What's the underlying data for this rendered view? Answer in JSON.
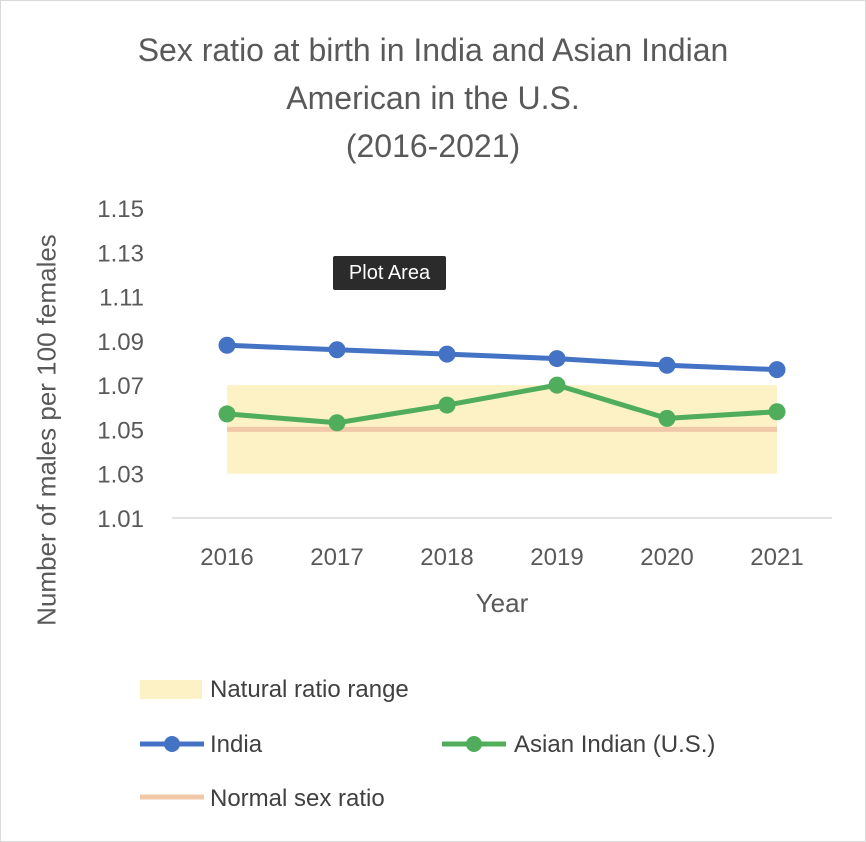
{
  "tooltip": "Plot Area",
  "chart_data": {
    "type": "line",
    "title_lines": [
      "Sex ratio at birth in India and Asian Indian",
      "American in the U.S.",
      "(2016-2021)"
    ],
    "xlabel": "Year",
    "ylabel": "Number of males per 100 females",
    "categories": [
      "2016",
      "2017",
      "2018",
      "2019",
      "2020",
      "2021"
    ],
    "yticks": [
      "1.15",
      "1.13",
      "1.11",
      "1.09",
      "1.07",
      "1.05",
      "1.03",
      "1.01"
    ],
    "ylim": [
      1.01,
      1.15
    ],
    "series": [
      {
        "name": "India",
        "color": "#4472c4",
        "values": [
          1.088,
          1.086,
          1.084,
          1.082,
          1.079,
          1.077
        ]
      },
      {
        "name": "Asian Indian (U.S.)",
        "color": "#4fad5b",
        "values": [
          1.057,
          1.053,
          1.061,
          1.07,
          1.055,
          1.058
        ]
      }
    ],
    "band": {
      "name": "Natural ratio range",
      "color": "#fdf2c6",
      "range": [
        1.03,
        1.07
      ]
    },
    "reference_line": {
      "name": "Normal sex ratio",
      "color": "#f2c9a8",
      "value": 1.05
    },
    "grid": false,
    "legend_position": "bottom"
  }
}
